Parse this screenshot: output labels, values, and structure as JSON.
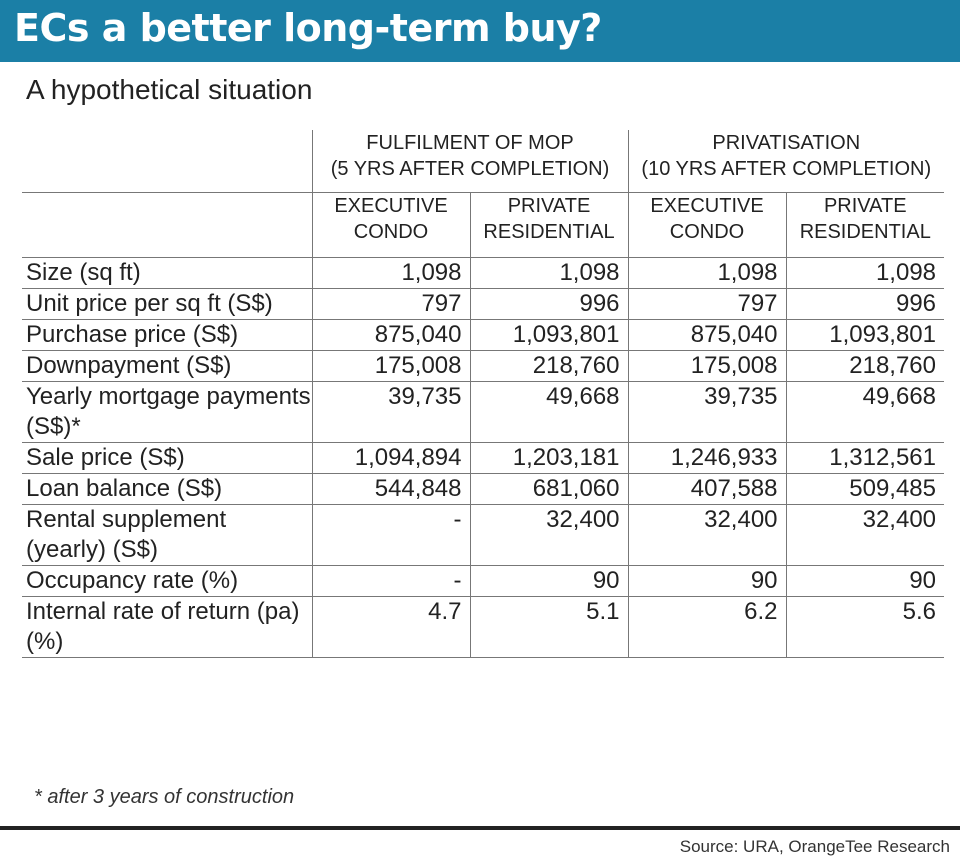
{
  "title": "ECs a better long-term buy?",
  "subtitle": "A hypothetical situation",
  "groups": [
    {
      "line1": "FULFILMENT OF MOP",
      "line2": "(5 YRS AFTER COMPLETION)"
    },
    {
      "line1": "PRIVATISATION",
      "line2": "(10 YRS AFTER COMPLETION)"
    }
  ],
  "subheaders": [
    {
      "line1": "EXECUTIVE",
      "line2": "CONDO"
    },
    {
      "line1": "PRIVATE",
      "line2": "RESIDENTIAL"
    },
    {
      "line1": "EXECUTIVE",
      "line2": "CONDO"
    },
    {
      "line1": "PRIVATE",
      "line2": "RESIDENTIAL"
    }
  ],
  "rows": [
    {
      "label": "Size (sq ft)",
      "values": [
        "1,098",
        "1,098",
        "1,098",
        "1,098"
      ]
    },
    {
      "label": "Unit price per sq ft (S$)",
      "values": [
        "797",
        "996",
        "797",
        "996"
      ]
    },
    {
      "label": "Purchase price (S$)",
      "values": [
        "875,040",
        "1,093,801",
        "875,040",
        "1,093,801"
      ]
    },
    {
      "label": "Downpayment (S$)",
      "values": [
        "175,008",
        "218,760",
        "175,008",
        "218,760"
      ]
    },
    {
      "label": "Yearly mortgage payments (S$)*",
      "values": [
        "39,735",
        "49,668",
        "39,735",
        "49,668"
      ]
    },
    {
      "label": "Sale price (S$)",
      "values": [
        "1,094,894",
        "1,203,181",
        "1,246,933",
        "1,312,561"
      ]
    },
    {
      "label": "Loan balance (S$)",
      "values": [
        "544,848",
        "681,060",
        "407,588",
        "509,485"
      ]
    },
    {
      "label": "Rental supplement (yearly) (S$)",
      "values": [
        "-",
        "32,400",
        "32,400",
        "32,400"
      ]
    },
    {
      "label": "Occupancy rate (%)",
      "values": [
        "-",
        "90",
        "90",
        "90"
      ]
    },
    {
      "label": "Internal rate of return (pa) (%)",
      "values": [
        "4.7",
        "5.1",
        "6.2",
        "5.6"
      ]
    }
  ],
  "footnote": "* after 3 years of construction",
  "source": "Source: URA, OrangeTee Research",
  "colors": {
    "title_bar": "#1b7fa6",
    "title_text": "#ffffff"
  }
}
